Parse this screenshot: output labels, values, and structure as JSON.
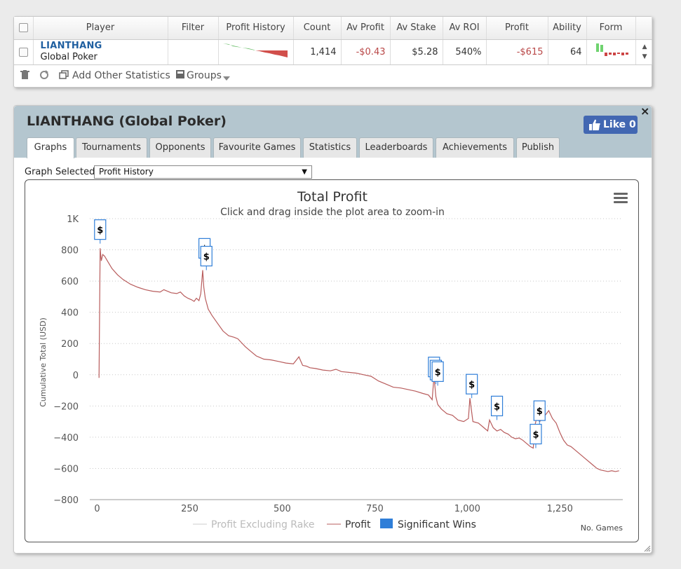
{
  "stats": {
    "headers": [
      "Player",
      "Filter",
      "Profit History",
      "Count",
      "Av Profit",
      "Av Stake",
      "Av ROI",
      "Profit",
      "Ability",
      "Form"
    ],
    "row": {
      "player_name": "LIANTHANG",
      "player_site": "Global Poker",
      "filter": "",
      "count": "1,414",
      "av_profit": "-$0.43",
      "av_stake": "$5.28",
      "av_roi": "540%",
      "profit": "-$615",
      "ability": "64"
    },
    "toolbar": {
      "add_stats": "Add Other Statistics",
      "groups": "Groups"
    }
  },
  "panel": {
    "title": "LIANTHANG (Global Poker)",
    "like_label": "Like 0",
    "close": "×",
    "tabs": [
      "Graphs",
      "Tournaments",
      "Opponents",
      "Favourite Games",
      "Statistics",
      "Leaderboards",
      "Achievements",
      "Publish"
    ],
    "active_tab": "Graphs",
    "graph_selected_label": "Graph Selected:",
    "graph_selected_value": "Profit History"
  },
  "colors": {
    "profit_line": "#b85c5c",
    "excl_rake_line": "#cccccc",
    "significant_wins": "#2f7ed8",
    "panel_header": "#b4c6cf",
    "like_button": "#4267b2"
  },
  "chart_data": {
    "type": "line",
    "title": "Total Profit",
    "subtitle": "Click and drag inside the plot area to zoom-in",
    "xlabel": "No. Games",
    "ylabel": "Cumulative Total (USD)",
    "xlim": [
      -20,
      1420
    ],
    "ylim": [
      -800,
      1000
    ],
    "xticks": [
      0,
      250,
      500,
      750,
      1000,
      1250
    ],
    "xtick_labels": [
      "0",
      "250",
      "500",
      "750",
      "1,000",
      "1,250"
    ],
    "yticks": [
      -800,
      -600,
      -400,
      -200,
      0,
      200,
      400,
      600,
      800,
      1000
    ],
    "ytick_labels": [
      "−800",
      "−600",
      "−400",
      "−200",
      "0",
      "200",
      "400",
      "600",
      "800",
      "1K"
    ],
    "grid": true,
    "legend_placement": "bottom-center",
    "legend": [
      "Profit Excluding Rake",
      "Profit",
      "Significant Wins"
    ],
    "series": [
      {
        "name": "Profit",
        "x": [
          5,
          8,
          11,
          15,
          20,
          30,
          40,
          55,
          70,
          90,
          110,
          130,
          150,
          170,
          180,
          200,
          215,
          225,
          235,
          245,
          255,
          262,
          268,
          275,
          280,
          285,
          288,
          292,
          300,
          310,
          325,
          340,
          355,
          370,
          380,
          390,
          400,
          415,
          430,
          450,
          470,
          490,
          510,
          530,
          545,
          555,
          565,
          575,
          590,
          610,
          630,
          645,
          660,
          680,
          700,
          720,
          740,
          760,
          780,
          800,
          820,
          840,
          860,
          880,
          895,
          905,
          910,
          915,
          920,
          930,
          945,
          960,
          975,
          990,
          1003,
          1007,
          1015,
          1030,
          1045,
          1055,
          1060,
          1070,
          1080,
          1090,
          1100,
          1110,
          1120,
          1130,
          1140,
          1150,
          1160,
          1170,
          1178,
          1183,
          1188,
          1195,
          1200,
          1210,
          1220,
          1230,
          1240,
          1250,
          1260,
          1270,
          1280,
          1290,
          1300,
          1310,
          1320,
          1330,
          1340,
          1350,
          1360,
          1370,
          1380,
          1390,
          1400,
          1410
        ],
        "values": [
          -20,
          810,
          730,
          770,
          760,
          720,
          680,
          640,
          610,
          580,
          560,
          545,
          535,
          530,
          545,
          525,
          520,
          530,
          505,
          490,
          480,
          470,
          490,
          475,
          520,
          670,
          560,
          490,
          420,
          380,
          330,
          280,
          250,
          240,
          230,
          205,
          180,
          150,
          120,
          100,
          95,
          85,
          75,
          70,
          115,
          60,
          55,
          45,
          40,
          30,
          25,
          35,
          20,
          15,
          10,
          0,
          -10,
          -40,
          -60,
          -80,
          -85,
          -95,
          -105,
          -120,
          -130,
          -160,
          -10,
          -140,
          -190,
          -220,
          -250,
          -260,
          -290,
          -300,
          -280,
          -150,
          -300,
          -310,
          -340,
          -360,
          -290,
          -340,
          -360,
          -350,
          -370,
          -380,
          -400,
          -410,
          -405,
          -420,
          -440,
          -460,
          -470,
          -320,
          -270,
          -300,
          -290,
          -260,
          -230,
          -280,
          -310,
          -370,
          -420,
          -450,
          -460,
          -480,
          -500,
          -520,
          -540,
          -560,
          -580,
          -600,
          -610,
          -615,
          -620,
          -615,
          -620,
          -615
        ]
      },
      {
        "name": "Significant Wins",
        "type": "flag",
        "x": [
          8,
          290,
          295,
          910,
          915,
          920,
          1012,
          1080,
          1185,
          1195
        ],
        "values": [
          840,
          720,
          670,
          -40,
          -60,
          -70,
          -150,
          -290,
          -470,
          -320
        ]
      }
    ]
  }
}
